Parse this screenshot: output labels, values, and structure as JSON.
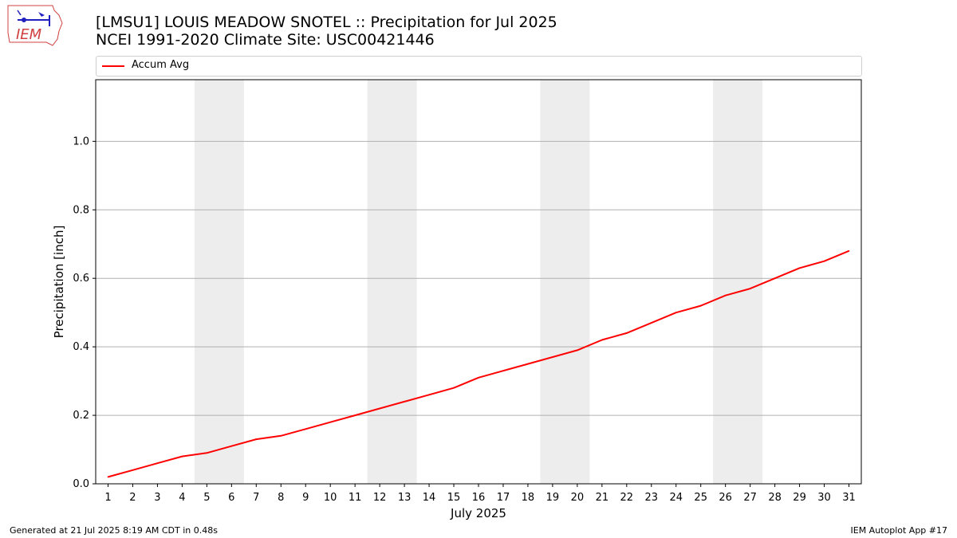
{
  "logo": {
    "text": "IEM",
    "icon": "iem-logo-icon"
  },
  "title": {
    "line1": "[LMSU1] LOUIS MEADOW SNOTEL :: Precipitation for Jul 2025",
    "line2": "NCEI 1991-2020 Climate Site: USC00421446"
  },
  "footer": {
    "generated": "Generated at 21 Jul 2025 8:19 AM CDT in 0.48s",
    "app": "IEM Autoplot App #17"
  },
  "colors": {
    "line": "#ff0000",
    "weekend": "#ededed",
    "grid": "#b0b0b0"
  },
  "chart_data": {
    "type": "line",
    "title": "[LMSU1] LOUIS MEADOW SNOTEL :: Precipitation for Jul 2025",
    "xlabel": "July 2025",
    "ylabel": "Precipitation [inch]",
    "ylim": [
      0,
      1.18
    ],
    "xlim": [
      0.5,
      31.5
    ],
    "yticks": [
      0.0,
      0.2,
      0.4,
      0.6,
      0.8,
      1.0
    ],
    "ytick_labels": [
      "0.0",
      "0.2",
      "0.4",
      "0.6",
      "0.8",
      "1.0"
    ],
    "x": [
      1,
      2,
      3,
      4,
      5,
      6,
      7,
      8,
      9,
      10,
      11,
      12,
      13,
      14,
      15,
      16,
      17,
      18,
      19,
      20,
      21,
      22,
      23,
      24,
      25,
      26,
      27,
      28,
      29,
      30,
      31
    ],
    "xtick_labels": [
      "1",
      "2",
      "3",
      "4",
      "5",
      "6",
      "7",
      "8",
      "9",
      "10",
      "11",
      "12",
      "13",
      "14",
      "15",
      "16",
      "17",
      "18",
      "19",
      "20",
      "21",
      "22",
      "23",
      "24",
      "25",
      "26",
      "27",
      "28",
      "29",
      "30",
      "31"
    ],
    "weekends": [
      [
        5,
        6
      ],
      [
        12,
        13
      ],
      [
        19,
        20
      ],
      [
        26,
        27
      ]
    ],
    "grid": "horizontal",
    "legend": "top",
    "series": [
      {
        "name": "Accum Avg",
        "values": [
          0.02,
          0.04,
          0.06,
          0.08,
          0.09,
          0.11,
          0.13,
          0.14,
          0.16,
          0.18,
          0.2,
          0.22,
          0.24,
          0.26,
          0.28,
          0.31,
          0.33,
          0.35,
          0.37,
          0.39,
          0.42,
          0.44,
          0.47,
          0.5,
          0.52,
          0.55,
          0.57,
          0.6,
          0.63,
          0.65,
          0.68
        ]
      }
    ]
  }
}
